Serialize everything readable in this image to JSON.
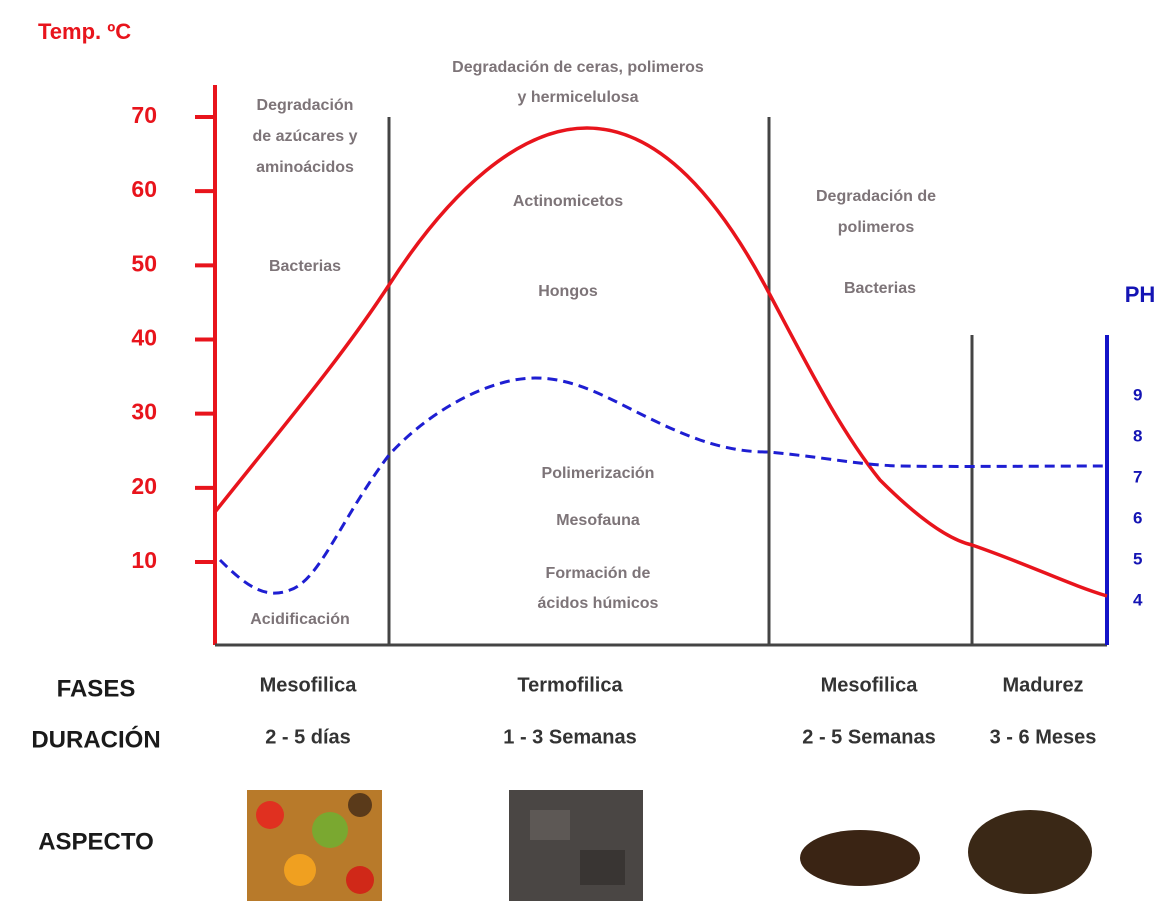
{
  "title": "Temp. ºC",
  "temp_axis": {
    "ticks": [
      10,
      20,
      30,
      40,
      50,
      60,
      70
    ]
  },
  "ph_axis": {
    "label": "PH",
    "ticks": [
      4,
      5,
      6,
      7,
      8,
      9
    ]
  },
  "annotations": [
    [
      "Degradación",
      "de azúcares y",
      "aminoácidos"
    ],
    [
      "Bacterias"
    ],
    [
      "Acidificación"
    ],
    [
      "Degradación de ceras, polimeros",
      "y hermicelulosa"
    ],
    [
      "Actinomicetos"
    ],
    [
      "Hongos"
    ],
    [
      "Polimerización"
    ],
    [
      "Mesofauna"
    ],
    [
      "Formación de",
      "ácidos húmicos"
    ],
    [
      "Degradación de",
      "polimeros"
    ],
    [
      "Bacterias"
    ]
  ],
  "rows": {
    "fases": {
      "label": "FASES",
      "values": [
        "Mesofilica",
        "Termofilica",
        "Mesofilica",
        "Madurez"
      ]
    },
    "duracion": {
      "label": "DURACIÓN",
      "values": [
        "2 - 5 días",
        "1 - 3 Semanas",
        "2 - 5 Semanas",
        "3 - 6 Meses"
      ]
    },
    "aspecto": {
      "label": "ASPECTO"
    }
  }
}
